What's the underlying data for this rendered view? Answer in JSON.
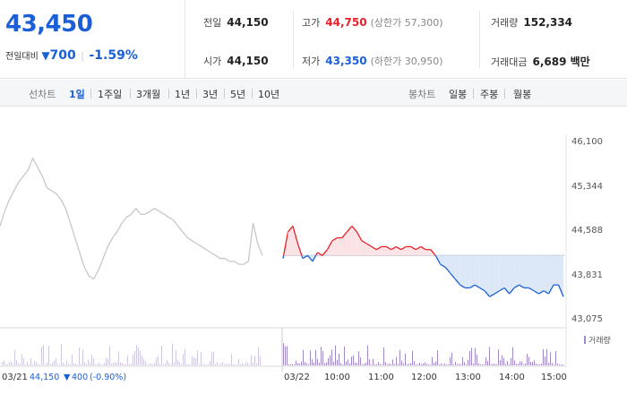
{
  "quote": {
    "price": "43,450",
    "change_label": "전일대비",
    "change_arrow": "▼",
    "change_value": "700",
    "change_pct": "-1.59%"
  },
  "stats": {
    "prev_close": {
      "label": "전일",
      "value": "44,150"
    },
    "high": {
      "label": "고가",
      "value": "44,750",
      "sub": "(상한가 57,300)"
    },
    "volume": {
      "label": "거래량",
      "value": "152,334"
    },
    "open": {
      "label": "시가",
      "value": "44,150"
    },
    "low": {
      "label": "저가",
      "value": "43,350",
      "sub": "(하한가 30,950)"
    },
    "trade_value": {
      "label": "거래대금",
      "value": "6,689 백만"
    }
  },
  "period_bar": {
    "line_title": "선차트",
    "line_periods": [
      "1일",
      "1주일",
      "3개월",
      "1년",
      "3년",
      "5년",
      "10년"
    ],
    "active_period": "1일",
    "candle_title": "봉차트",
    "candle_periods": [
      "일봉",
      "주봉",
      "월봉"
    ]
  },
  "chart_data": {
    "type": "line",
    "title": "",
    "y_ticks": [
      "46,100",
      "45,344",
      "44,588",
      "43,831",
      "43,075"
    ],
    "ylim": [
      43075,
      46100
    ],
    "reference_price": 44150,
    "x_labels": [
      "03/22",
      "10:00",
      "11:00",
      "12:00",
      "13:00",
      "14:00",
      "15:00"
    ],
    "prev_day_label": "03/21",
    "prev_day_info": {
      "close": "44,150",
      "arrow": "▼",
      "change": "400",
      "pct": "(-0.90%)"
    },
    "volume_legend": "거래량",
    "prev_day_series": [
      44650,
      44900,
      45100,
      45250,
      45400,
      45500,
      45600,
      45800,
      45650,
      45500,
      45300,
      45250,
      45200,
      45100,
      44950,
      44700,
      44450,
      44200,
      43950,
      43800,
      43750,
      43900,
      44100,
      44300,
      44450,
      44550,
      44700,
      44800,
      44850,
      44950,
      44850,
      44850,
      44900,
      44950,
      44900,
      44850,
      44800,
      44750,
      44650,
      44550,
      44450,
      44400,
      44350,
      44300,
      44250,
      44200,
      44150,
      44100,
      44100,
      44050,
      44050,
      44000,
      44000,
      44050,
      44700,
      44350,
      44150
    ],
    "today_series": [
      44100,
      44550,
      44650,
      44350,
      44100,
      44150,
      44050,
      44200,
      44150,
      44250,
      44400,
      44450,
      44450,
      44550,
      44650,
      44550,
      44400,
      44350,
      44300,
      44250,
      44300,
      44300,
      44250,
      44300,
      44250,
      44300,
      44300,
      44250,
      44300,
      44250,
      44250,
      44150,
      44000,
      43950,
      43850,
      43750,
      43650,
      43600,
      43600,
      43650,
      43600,
      43550,
      43450,
      43500,
      43550,
      43600,
      43500,
      43600,
      43650,
      43600,
      43600,
      43550,
      43500,
      43550,
      43500,
      43650,
      43650,
      43450
    ]
  },
  "colors": {
    "up": "#e8202a",
    "down": "#1a5fd6",
    "prev_line": "#c8c8c8",
    "volume": "#a089c8",
    "up_fill": "#fbe3e5",
    "down_fill": "#dce8f8"
  }
}
